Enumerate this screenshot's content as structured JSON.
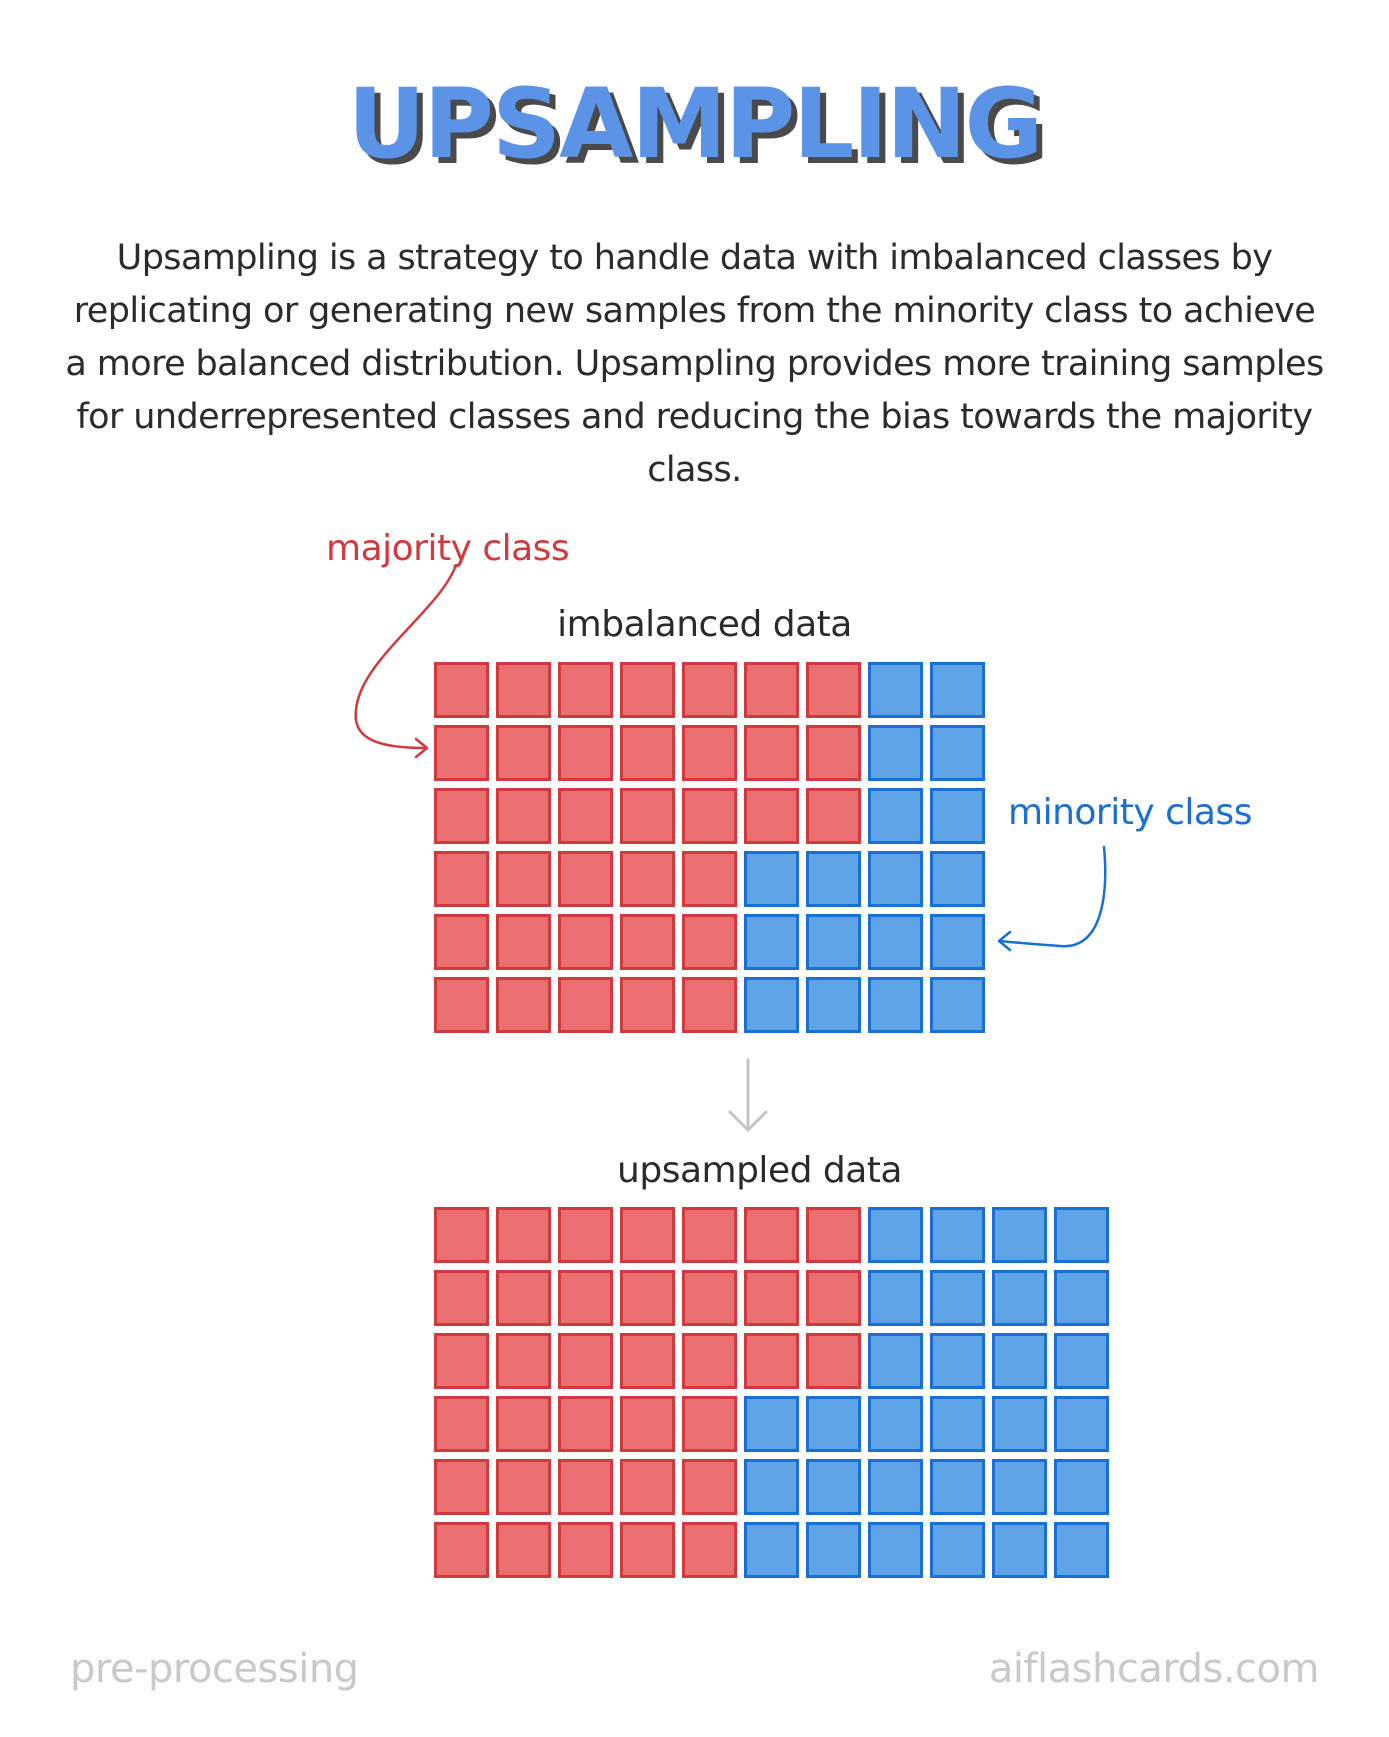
{
  "title": "UPSAMPLING",
  "description": "Upsampling is a strategy to handle data with imbalanced classes by replicating or generating new samples from the minority class to achieve a more balanced distribution. Upsampling provides more training samples for underrepresented classes and reducing the bias towards the majority class.",
  "labels": {
    "majority": "majority class",
    "minority": "minority class",
    "imbalanced": "imbalanced data",
    "upsampled": "upsampled data"
  },
  "colors": {
    "majority": "#eb6e70",
    "minority": "#5fa4e6",
    "title": "#5b93e6"
  },
  "imbalanced_grid": [
    [
      "maj",
      "maj",
      "maj",
      "maj",
      "maj",
      "maj",
      "maj",
      "min",
      "min"
    ],
    [
      "maj",
      "maj",
      "maj",
      "maj",
      "maj",
      "maj",
      "maj",
      "min",
      "min"
    ],
    [
      "maj",
      "maj",
      "maj",
      "maj",
      "maj",
      "maj",
      "maj",
      "min",
      "min"
    ],
    [
      "maj",
      "maj",
      "maj",
      "maj",
      "maj",
      "min",
      "min",
      "min",
      "min"
    ],
    [
      "maj",
      "maj",
      "maj",
      "maj",
      "maj",
      "min",
      "min",
      "min",
      "min"
    ],
    [
      "maj",
      "maj",
      "maj",
      "maj",
      "maj",
      "min",
      "min",
      "min",
      "min"
    ]
  ],
  "upsampled_grid": [
    [
      "maj",
      "maj",
      "maj",
      "maj",
      "maj",
      "maj",
      "maj",
      "min",
      "min",
      "min",
      "min"
    ],
    [
      "maj",
      "maj",
      "maj",
      "maj",
      "maj",
      "maj",
      "maj",
      "min",
      "min",
      "min",
      "min"
    ],
    [
      "maj",
      "maj",
      "maj",
      "maj",
      "maj",
      "maj",
      "maj",
      "min",
      "min",
      "min",
      "min"
    ],
    [
      "maj",
      "maj",
      "maj",
      "maj",
      "maj",
      "min",
      "min",
      "min",
      "min",
      "min",
      "min"
    ],
    [
      "maj",
      "maj",
      "maj",
      "maj",
      "maj",
      "min",
      "min",
      "min",
      "min",
      "min",
      "min"
    ],
    [
      "maj",
      "maj",
      "maj",
      "maj",
      "maj",
      "min",
      "min",
      "min",
      "min",
      "min",
      "min"
    ]
  ],
  "footer": {
    "left": "pre-processing",
    "right": "aiflashcards.com"
  }
}
